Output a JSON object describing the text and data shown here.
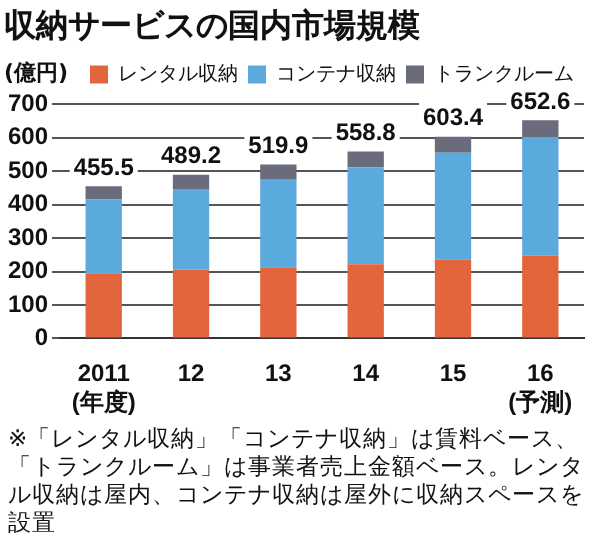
{
  "chart_data": {
    "type": "bar",
    "title": "収納サービスの国内市場規模",
    "ylabel": "(億円)",
    "categories": [
      "2011\n(年度)",
      "12",
      "13",
      "14",
      "15",
      "16\n(予測)"
    ],
    "stacked": true,
    "series": [
      {
        "name": "レンタル収納",
        "color": "#e2653c",
        "values": [
          195,
          205,
          213,
          222,
          235,
          248
        ]
      },
      {
        "name": "コンテナ収納",
        "color": "#5aaade",
        "values": [
          220.5,
          242.2,
          261.9,
          289.8,
          320.4,
          354.6
        ]
      },
      {
        "name": "トランクルーム",
        "color": "#6a6b7b",
        "values": [
          40,
          42,
          45,
          47,
          48,
          50
        ]
      }
    ],
    "totals": [
      "455.5",
      "489.2",
      "519.9",
      "558.8",
      "603.4",
      "652.6"
    ],
    "ylim": [
      0,
      700
    ],
    "yticks": [
      0,
      100,
      200,
      300,
      400,
      500,
      600,
      700
    ],
    "grid": "y",
    "legend": "top",
    "annotations": [
      "※「レンタル収納」「コンテナ収納」は賃料ベース、「トランクルーム」は事業者売上金額ベース。レンタル収納は屋内、コンテナ収納は屋外に収納スペースを設置"
    ]
  }
}
